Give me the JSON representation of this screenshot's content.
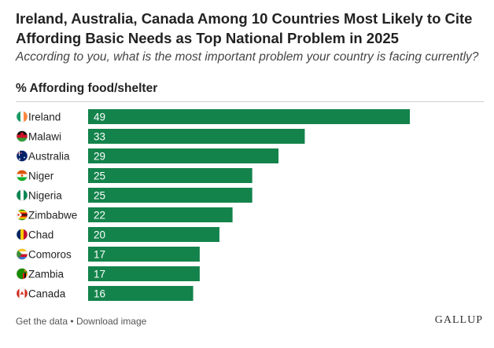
{
  "page": {
    "title": "Ireland, Australia, Canada Among 10 Countries Most Likely to Cite Affording Basic Needs as Top National Problem in 2025",
    "subtitle": "According to you, what is the most important problem your country is facing currently?",
    "measure_label": "% Affording food/shelter",
    "footer": {
      "get_data": "Get the data",
      "separator": "•",
      "download": "Download image"
    },
    "brand": "GALLUP"
  },
  "colors": {
    "bar": "#13834b",
    "value_text": "#ffffff",
    "label_text": "#222222"
  },
  "chart_data": {
    "type": "bar",
    "orientation": "horizontal",
    "categories": [
      "Ireland",
      "Malawi",
      "Australia",
      "Niger",
      "Nigeria",
      "Zimbabwe",
      "Chad",
      "Comoros",
      "Zambia",
      "Canada"
    ],
    "values": [
      49,
      33,
      29,
      25,
      25,
      22,
      20,
      17,
      17,
      16
    ],
    "flag_icons": [
      "ireland-flag-icon",
      "malawi-flag-icon",
      "australia-flag-icon",
      "niger-flag-icon",
      "nigeria-flag-icon",
      "zimbabwe-flag-icon",
      "chad-flag-icon",
      "comoros-flag-icon",
      "zambia-flag-icon",
      "canada-flag-icon"
    ],
    "xlim": [
      0,
      49
    ],
    "grid": false,
    "legend": "none",
    "data_labels": "inside-left"
  }
}
